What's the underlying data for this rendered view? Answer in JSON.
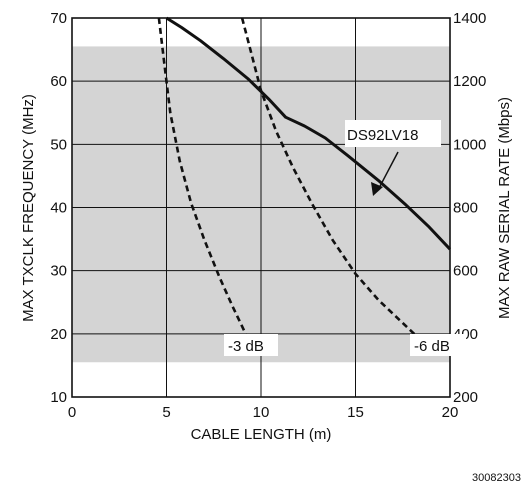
{
  "chart_data": {
    "type": "line",
    "title": "",
    "xlabel": "CABLE LENGTH (m)",
    "ylabel": "MAX TXCLK FREQUENCY (MHz)",
    "y2label": "MAX RAW SERIAL RATE (Mbps)",
    "xlim": [
      0,
      20
    ],
    "ylim": [
      10,
      70
    ],
    "y2lim": [
      200,
      1400
    ],
    "xticks": [
      "0",
      "5",
      "10",
      "15",
      "20"
    ],
    "yticks": [
      "10",
      "20",
      "30",
      "40",
      "50",
      "60",
      "70"
    ],
    "y2ticks": [
      "200",
      "400",
      "600",
      "800",
      "1000",
      "1200",
      "1400"
    ],
    "grid": true,
    "shaded_band": [
      15.5,
      65.5
    ],
    "shade_color": "#d4d4d4",
    "series": [
      {
        "name": "DS92LV18",
        "style": "solid",
        "color": "#111111",
        "x": [
          5.0,
          5.8,
          6.8,
          8.0,
          9.3,
          10.4,
          11.3,
          12.3,
          13.4,
          14.6,
          16.2,
          17.6,
          18.9,
          20.0
        ],
        "y": [
          70.0,
          68.5,
          66.4,
          63.6,
          60.4,
          57.2,
          54.3,
          52.9,
          51.0,
          48.2,
          44.3,
          40.6,
          36.9,
          33.4
        ]
      },
      {
        "name": "-3 dB",
        "style": "dashed",
        "color": "#111111",
        "x": [
          4.6,
          4.9,
          5.2,
          5.7,
          6.3,
          7.0,
          7.8,
          8.5,
          9.3
        ],
        "y": [
          70.0,
          62.4,
          55.0,
          47.4,
          40.7,
          34.9,
          29.0,
          24.3,
          19.3
        ]
      },
      {
        "name": "-6 dB",
        "style": "dashed",
        "color": "#111111",
        "x": [
          9.0,
          9.4,
          10.0,
          10.8,
          11.7,
          12.7,
          13.8,
          15.0,
          16.2,
          17.5,
          18.6
        ],
        "y": [
          70.0,
          65.4,
          58.5,
          52.1,
          46.3,
          40.6,
          34.8,
          29.5,
          25.4,
          21.7,
          18.6
        ]
      }
    ],
    "labels": {
      "main": "DS92LV18",
      "minus3": "-3 dB",
      "minus6": "-6 dB"
    }
  },
  "figure_code": "30082303"
}
